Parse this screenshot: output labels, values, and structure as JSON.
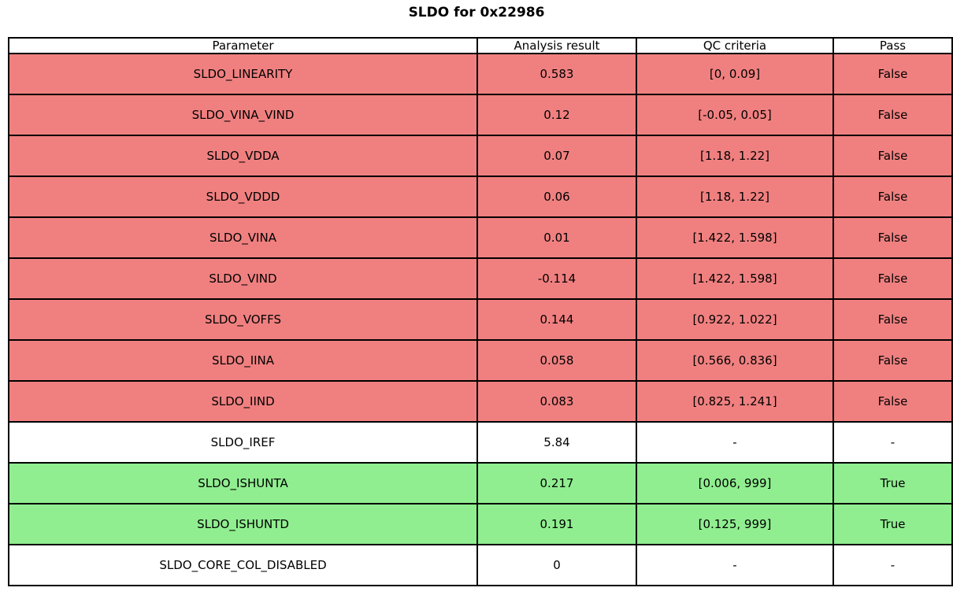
{
  "title": "SLDO for 0x22986",
  "colors": {
    "fail": "#f08080",
    "pass": "#90ee90",
    "neutral": "#ffffff",
    "border": "#000000"
  },
  "table": {
    "columns": [
      "Parameter",
      "Analysis result",
      "QC criteria",
      "Pass"
    ],
    "rows": [
      {
        "parameter": "SLDO_LINEARITY",
        "result": "0.583",
        "criteria": "[0, 0.09]",
        "pass": "False",
        "status": "fail"
      },
      {
        "parameter": "SLDO_VINA_VIND",
        "result": "0.12",
        "criteria": "[-0.05, 0.05]",
        "pass": "False",
        "status": "fail"
      },
      {
        "parameter": "SLDO_VDDA",
        "result": "0.07",
        "criteria": "[1.18, 1.22]",
        "pass": "False",
        "status": "fail"
      },
      {
        "parameter": "SLDO_VDDD",
        "result": "0.06",
        "criteria": "[1.18, 1.22]",
        "pass": "False",
        "status": "fail"
      },
      {
        "parameter": "SLDO_VINA",
        "result": "0.01",
        "criteria": "[1.422, 1.598]",
        "pass": "False",
        "status": "fail"
      },
      {
        "parameter": "SLDO_VIND",
        "result": "-0.114",
        "criteria": "[1.422, 1.598]",
        "pass": "False",
        "status": "fail"
      },
      {
        "parameter": "SLDO_VOFFS",
        "result": "0.144",
        "criteria": "[0.922, 1.022]",
        "pass": "False",
        "status": "fail"
      },
      {
        "parameter": "SLDO_IINA",
        "result": "0.058",
        "criteria": "[0.566, 0.836]",
        "pass": "False",
        "status": "fail"
      },
      {
        "parameter": "SLDO_IIND",
        "result": "0.083",
        "criteria": "[0.825, 1.241]",
        "pass": "False",
        "status": "fail"
      },
      {
        "parameter": "SLDO_IREF",
        "result": "5.84",
        "criteria": "-",
        "pass": "-",
        "status": "neutral"
      },
      {
        "parameter": "SLDO_ISHUNTA",
        "result": "0.217",
        "criteria": "[0.006, 999]",
        "pass": "True",
        "status": "pass"
      },
      {
        "parameter": "SLDO_ISHUNTD",
        "result": "0.191",
        "criteria": "[0.125, 999]",
        "pass": "True",
        "status": "pass"
      },
      {
        "parameter": "SLDO_CORE_COL_DISABLED",
        "result": "0",
        "criteria": "-",
        "pass": "-",
        "status": "neutral"
      }
    ]
  },
  "chart_data": {
    "type": "table",
    "title": "SLDO for 0x22986",
    "columns": [
      "Parameter",
      "Analysis result",
      "QC criteria",
      "Pass"
    ],
    "rows": [
      [
        "SLDO_LINEARITY",
        "0.583",
        "[0, 0.09]",
        "False"
      ],
      [
        "SLDO_VINA_VIND",
        "0.12",
        "[-0.05, 0.05]",
        "False"
      ],
      [
        "SLDO_VDDA",
        "0.07",
        "[1.18, 1.22]",
        "False"
      ],
      [
        "SLDO_VDDD",
        "0.06",
        "[1.18, 1.22]",
        "False"
      ],
      [
        "SLDO_VINA",
        "0.01",
        "[1.422, 1.598]",
        "False"
      ],
      [
        "SLDO_VIND",
        "-0.114",
        "[1.422, 1.598]",
        "False"
      ],
      [
        "SLDO_VOFFS",
        "0.144",
        "[0.922, 1.022]",
        "False"
      ],
      [
        "SLDO_IINA",
        "0.058",
        "[0.566, 0.836]",
        "False"
      ],
      [
        "SLDO_IIND",
        "0.083",
        "[0.825, 1.241]",
        "False"
      ],
      [
        "SLDO_IREF",
        "5.84",
        "-",
        "-"
      ],
      [
        "SLDO_ISHUNTA",
        "0.217",
        "[0.006, 999]",
        "True"
      ],
      [
        "SLDO_ISHUNTD",
        "0.191",
        "[0.125, 999]",
        "True"
      ],
      [
        "SLDO_CORE_COL_DISABLED",
        "0",
        "-",
        "-"
      ]
    ],
    "row_status": [
      "fail",
      "fail",
      "fail",
      "fail",
      "fail",
      "fail",
      "fail",
      "fail",
      "fail",
      "neutral",
      "pass",
      "pass",
      "neutral"
    ],
    "row_fill_colors": {
      "fail": "#f08080",
      "pass": "#90ee90",
      "neutral": "#ffffff"
    },
    "layout": {
      "header_fill": "#ffffff",
      "grid": true,
      "text_align": "center"
    }
  }
}
